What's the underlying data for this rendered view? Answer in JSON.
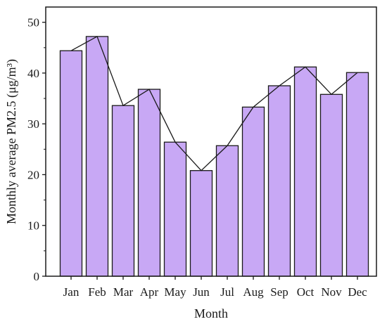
{
  "chart_data": {
    "type": "bar",
    "categories": [
      "Jan",
      "Feb",
      "Mar",
      "Apr",
      "May",
      "Jun",
      "Jul",
      "Aug",
      "Sep",
      "Oct",
      "Nov",
      "Dec"
    ],
    "values": [
      44.4,
      47.2,
      33.6,
      36.8,
      26.4,
      20.8,
      25.7,
      33.3,
      37.5,
      41.2,
      35.8,
      40.1
    ],
    "overlay_line": true,
    "xlabel": "Month",
    "ylabel": "Monthly average PM2.5 (μg/m³)",
    "ylim": [
      0,
      53
    ],
    "yticks": [
      0,
      10,
      20,
      30,
      40,
      50
    ],
    "grid": false,
    "legend": "none",
    "colors": {
      "bar_fill": "#c8a8f5",
      "bar_stroke": "#1a1a1a",
      "line": "#1a1a1a",
      "axis": "#1a1a1a"
    }
  }
}
